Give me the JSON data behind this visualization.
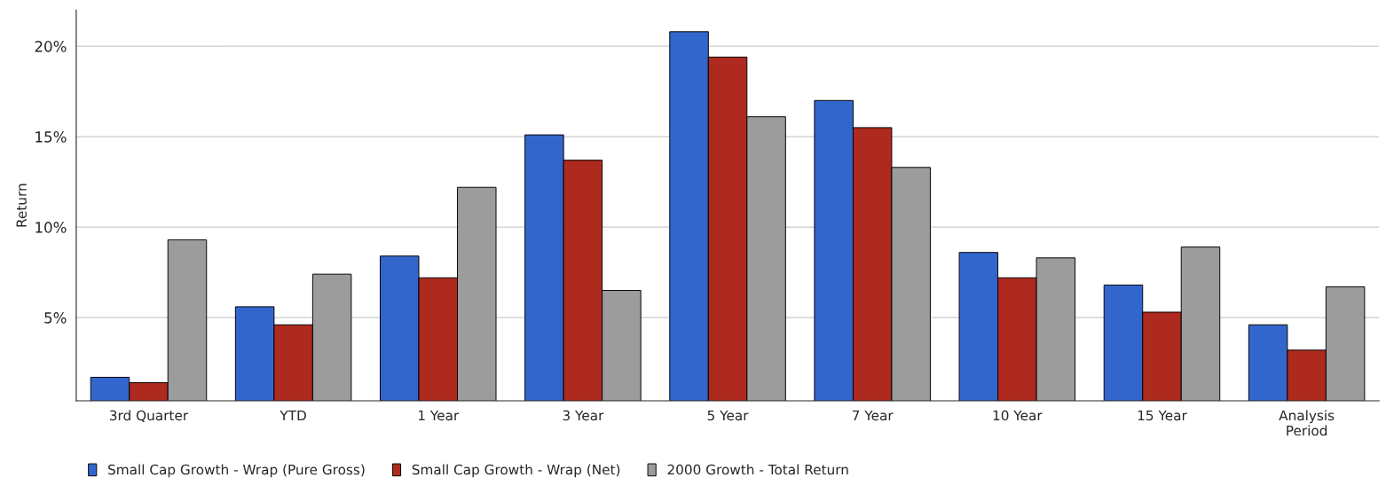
{
  "chart_data": {
    "type": "bar",
    "ylabel": "Return",
    "categories": [
      "3rd Quarter",
      "YTD",
      "1 Year",
      "3 Year",
      "5 Year",
      "7 Year",
      "10 Year",
      "15 Year",
      "Analysis\nPeriod"
    ],
    "series": [
      {
        "name": "Small Cap Growth - Wrap (Pure Gross)",
        "color": "#3366cc",
        "values": [
          1.7,
          5.6,
          8.4,
          15.1,
          20.8,
          17.0,
          8.6,
          6.8,
          4.6
        ]
      },
      {
        "name": "Small Cap Growth - Wrap (Net)",
        "color": "#ae2a1e",
        "values": [
          1.4,
          4.6,
          7.2,
          13.7,
          19.4,
          15.5,
          7.2,
          5.3,
          3.2
        ]
      },
      {
        "name": "2000 Growth - Total Return",
        "color": "#9c9c9c",
        "values": [
          9.3,
          7.4,
          12.2,
          6.5,
          16.1,
          13.3,
          8.3,
          8.9,
          6.7
        ]
      }
    ],
    "ylim": [
      0.4,
      22
    ],
    "yticks": [
      {
        "value": 5,
        "label": "5%"
      },
      {
        "value": 10,
        "label": "10%"
      },
      {
        "value": 15,
        "label": "15%"
      },
      {
        "value": 20,
        "label": "20%"
      }
    ],
    "grid": "y",
    "legend": "bottom"
  }
}
